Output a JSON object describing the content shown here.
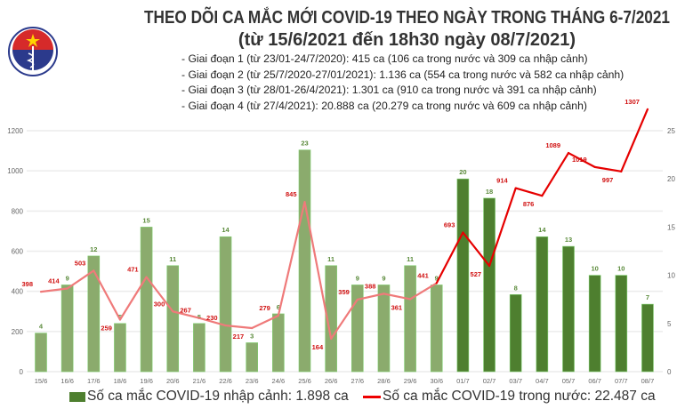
{
  "logo": {
    "text_top": "BỘ Y TẾ",
    "text_bottom": "MINISTRY OF HEALTH"
  },
  "title": "THEO DÕI CA MẮC MỚI COVID-19 THEO NGÀY TRONG THÁNG 6-7/2021",
  "subtitle": "(từ 15/6/2021 đến 18h30 ngày 08/7/2021)",
  "notes": [
    "- Giai đoạn 1 (từ 23/01-24/7/2020): 415 ca (106 ca trong nước và 309 ca nhập cảnh)",
    "- Giai đoạn 2 (từ 25/7/2020-27/01/2021): 1.136 ca (554 ca trong nước và 582 ca nhập cảnh)",
    "- Giai đoạn 3 (từ 28/01-26/4/2021): 1.301 ca (910 ca trong nước và 391 ca nhập cảnh)",
    "- Giai đoạn 4 (từ 27/4/2021): 20.888 ca (20.279 ca trong nước và 609 ca nhập cảnh)"
  ],
  "chart_data": {
    "type": "bar+line",
    "categories": [
      "15/6",
      "16/6",
      "17/6",
      "18/6",
      "19/6",
      "20/6",
      "21/6",
      "22/6",
      "23/6",
      "24/6",
      "25/6",
      "26/6",
      "27/6",
      "28/6",
      "29/6",
      "30/6",
      "01/7",
      "02/7",
      "03/7",
      "04/7",
      "05/7",
      "06/7",
      "07/7",
      "08/7"
    ],
    "series": [
      {
        "name": "Số ca mắc COVID-19 nhập cảnh: 1.898 ca",
        "type": "bar",
        "axis": "right",
        "values": [
          4,
          9,
          12,
          5,
          15,
          11,
          5,
          14,
          3,
          6,
          23,
          11,
          9,
          9,
          11,
          9,
          20,
          18,
          8,
          14,
          13,
          10,
          10,
          7
        ]
      },
      {
        "name": "Số ca mắc COVID-19 trong nước: 22.487 ca",
        "type": "line",
        "axis": "left",
        "values": [
          398,
          414,
          503,
          259,
          471,
          300,
          267,
          230,
          217,
          279,
          845,
          164,
          359,
          388,
          361,
          441,
          693,
          527,
          914,
          876,
          1089,
          1019,
          997,
          1307
        ]
      }
    ],
    "left_axis": {
      "ticks": [
        0,
        200,
        400,
        600,
        800,
        1000,
        1200
      ],
      "range": [
        0,
        1200
      ]
    },
    "right_axis": {
      "ticks": [
        0,
        5,
        10,
        15,
        20,
        25
      ],
      "range": [
        0,
        25
      ]
    },
    "grid": true,
    "legend": "bottom",
    "colors": {
      "bar_june": "#8bab6d",
      "bar_july": "#4e7f2f",
      "line_june": "#ef7a7a",
      "line_july": "#e60000",
      "bar_label": "#5a8a3a",
      "line_label": "#d01010"
    }
  }
}
